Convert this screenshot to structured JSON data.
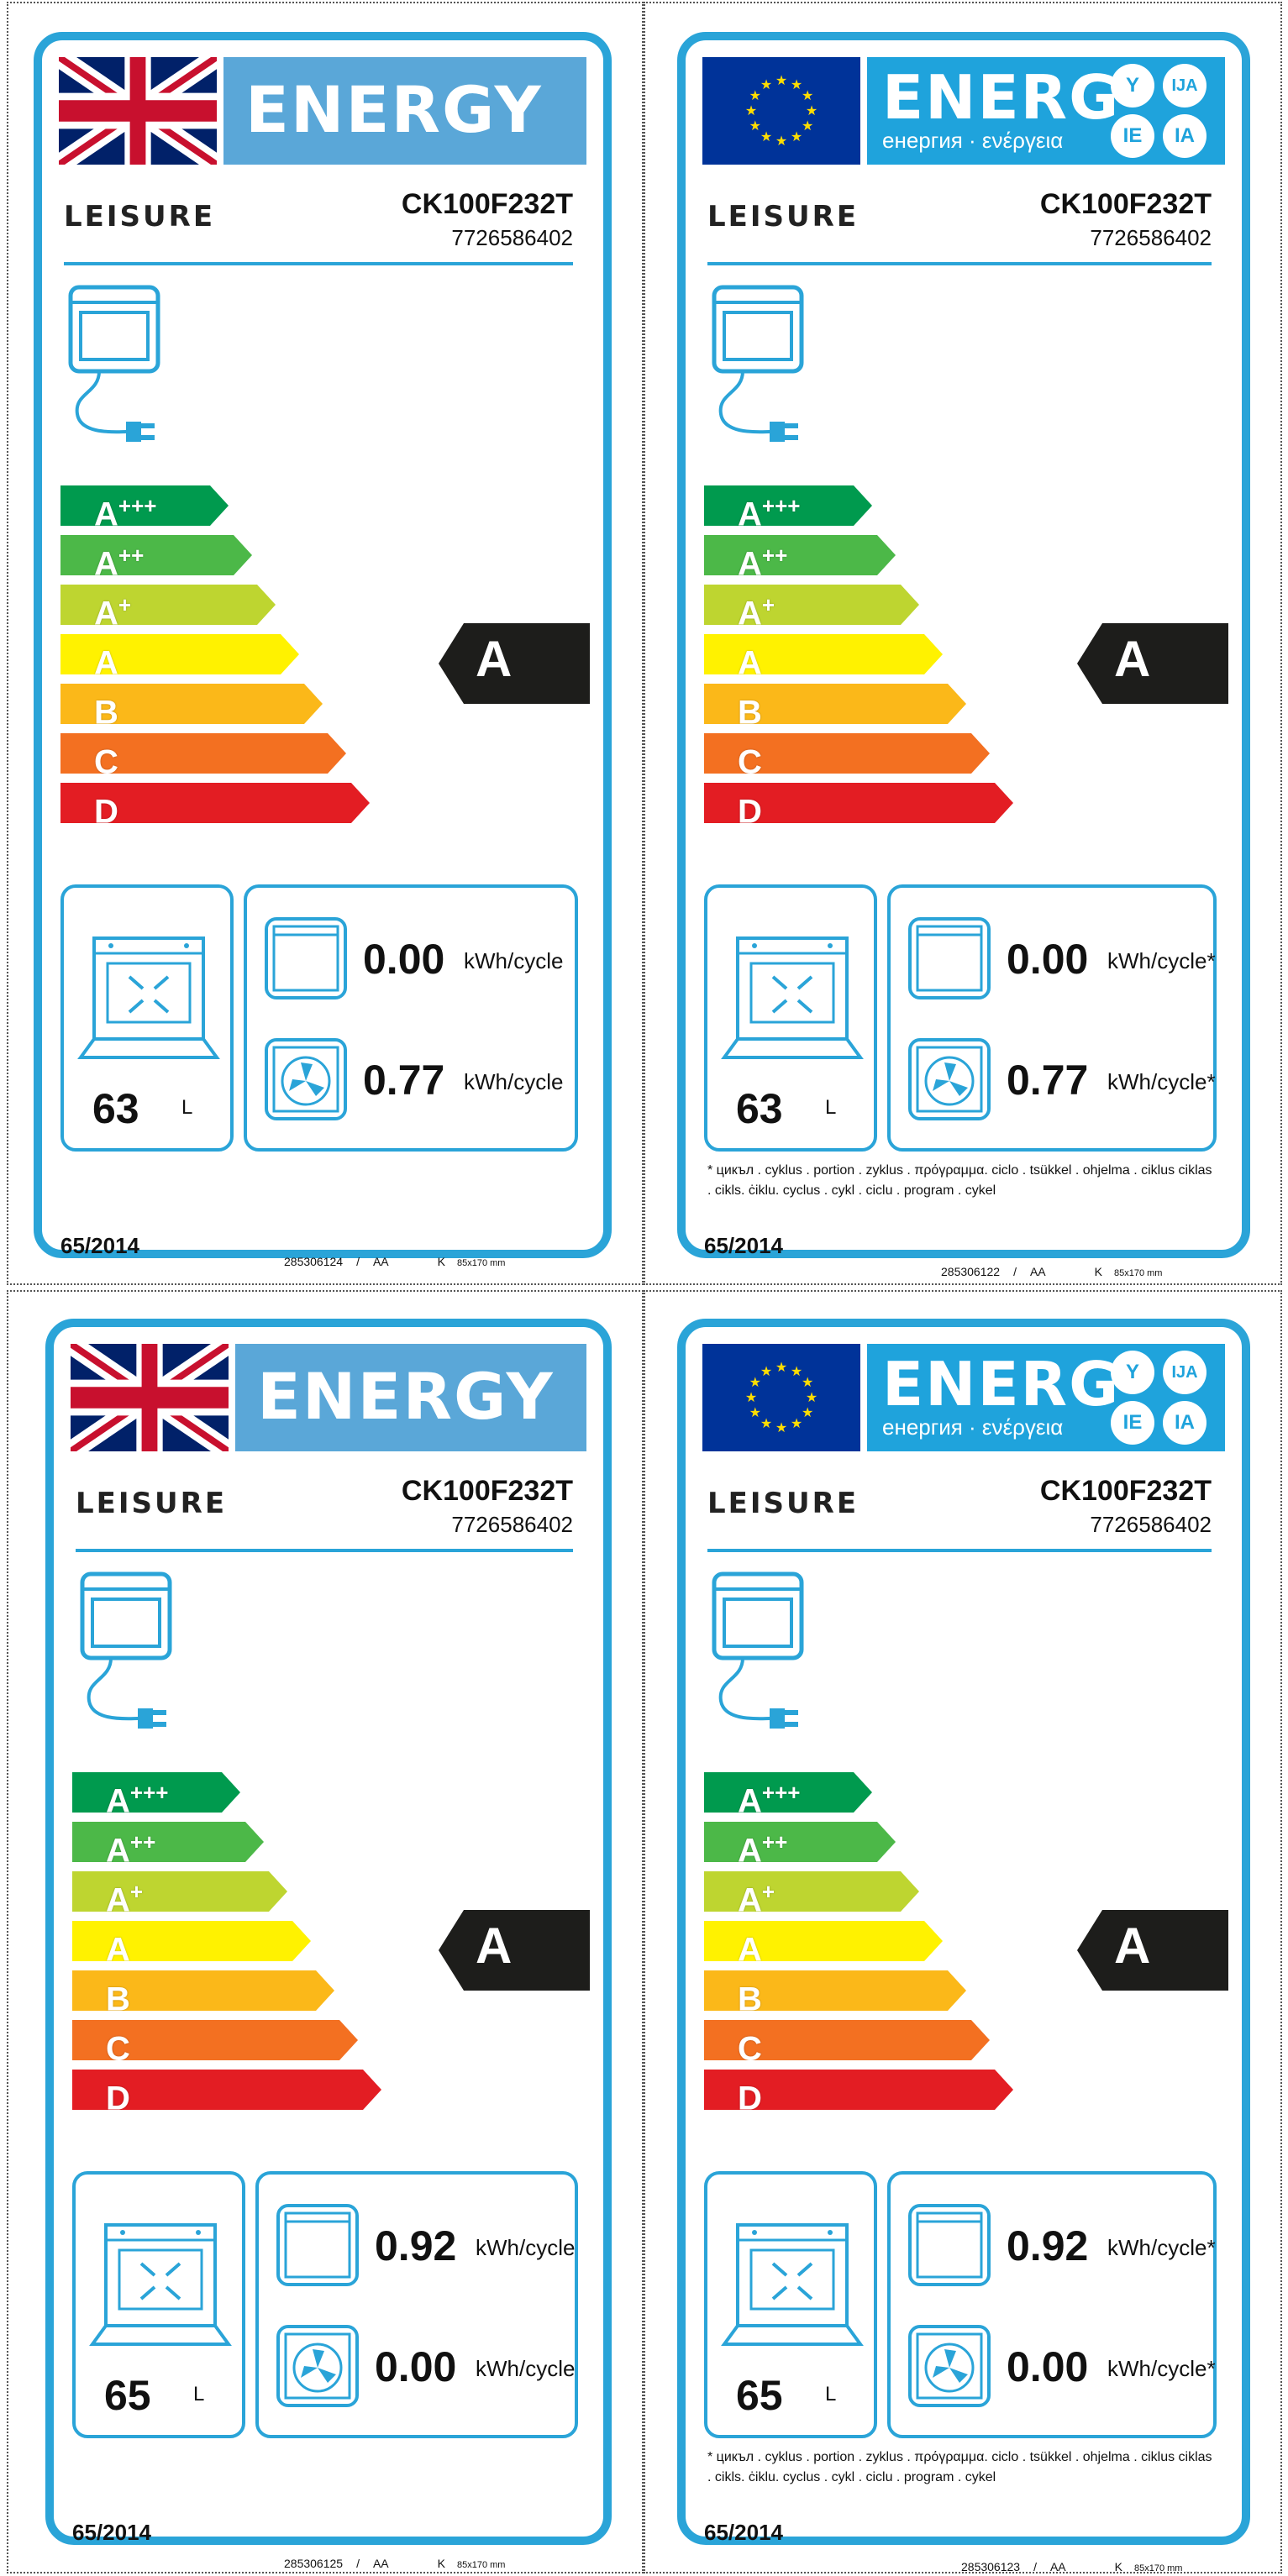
{
  "colors": {
    "frame": "#2aa4d8",
    "a3": "#009a4e",
    "a2": "#4cb848",
    "a1": "#bed530",
    "a": "#fff200",
    "b": "#fbb819",
    "c": "#f37021",
    "d": "#e31d23",
    "indicator": "#1d1d1b"
  },
  "scale": [
    {
      "letter": "A",
      "sup": "+++"
    },
    {
      "letter": "A",
      "sup": "++"
    },
    {
      "letter": "A",
      "sup": "+"
    },
    {
      "letter": "A",
      "sup": ""
    },
    {
      "letter": "B",
      "sup": ""
    },
    {
      "letter": "C",
      "sup": ""
    },
    {
      "letter": "D",
      "sup": ""
    }
  ],
  "labels": [
    {
      "header": "ENERGY",
      "brand": "LEISURE",
      "model": "CK100F232T",
      "code": "7726586402",
      "class": "A",
      "volume": "63",
      "volume_unit": "L",
      "cons1": "0.00",
      "cons2": "0.77",
      "unit": "kWh/cycle",
      "regulation": "65/2014",
      "bottom": {
        "num": "285306124",
        "sep": "/",
        "aa": "AA",
        "k": "K",
        "size": "85x170 mm"
      }
    },
    {
      "header": "ENERG",
      "header_sub": "енергия · ενέργεια",
      "suffix": [
        "Y",
        "IJA",
        "IE",
        "IA"
      ],
      "brand": "LEISURE",
      "model": "CK100F232T",
      "code": "7726586402",
      "class": "A",
      "volume": "63",
      "volume_unit": "L",
      "cons1": "0.00",
      "cons2": "0.77",
      "unit": "kWh/cycle*",
      "footnote": "* цикъл . cyklus . portion . zyklus . πρόγραμμα. ciclo . tsükkel . ohjelma . ciklus ciklas . cikls. ċiklu. cyclus . cykl . ciclu . program . cykel",
      "regulation": "65/2014",
      "bottom": {
        "num": "285306122",
        "sep": "/",
        "aa": "AA",
        "k": "K",
        "size": "85x170 mm"
      }
    },
    {
      "header": "ENERGY",
      "brand": "LEISURE",
      "model": "CK100F232T",
      "code": "7726586402",
      "class": "A",
      "volume": "65",
      "volume_unit": "L",
      "cons1": "0.92",
      "cons2": "0.00",
      "unit": "kWh/cycle",
      "regulation": "65/2014",
      "bottom": {
        "num": "285306125",
        "sep": "/",
        "aa": "AA",
        "k": "K",
        "size": "85x170 mm"
      }
    },
    {
      "header": "ENERG",
      "header_sub": "енергия · ενέργεια",
      "suffix": [
        "Y",
        "IJA",
        "IE",
        "IA"
      ],
      "brand": "LEISURE",
      "model": "CK100F232T",
      "code": "7726586402",
      "class": "A",
      "volume": "65",
      "volume_unit": "L",
      "cons1": "0.92",
      "cons2": "0.00",
      "unit": "kWh/cycle*",
      "footnote": "* цикъл . cyklus . portion . zyklus . πρόγραμμα. ciclo . tsükkel . ohjelma . ciklus ciklas . cikls. ċiklu. cyclus . cykl . ciclu . program . cykel",
      "regulation": "65/2014",
      "bottom": {
        "num": "285306123",
        "sep": "/",
        "aa": "AA",
        "k": "K",
        "size": "85x170 mm"
      }
    }
  ]
}
